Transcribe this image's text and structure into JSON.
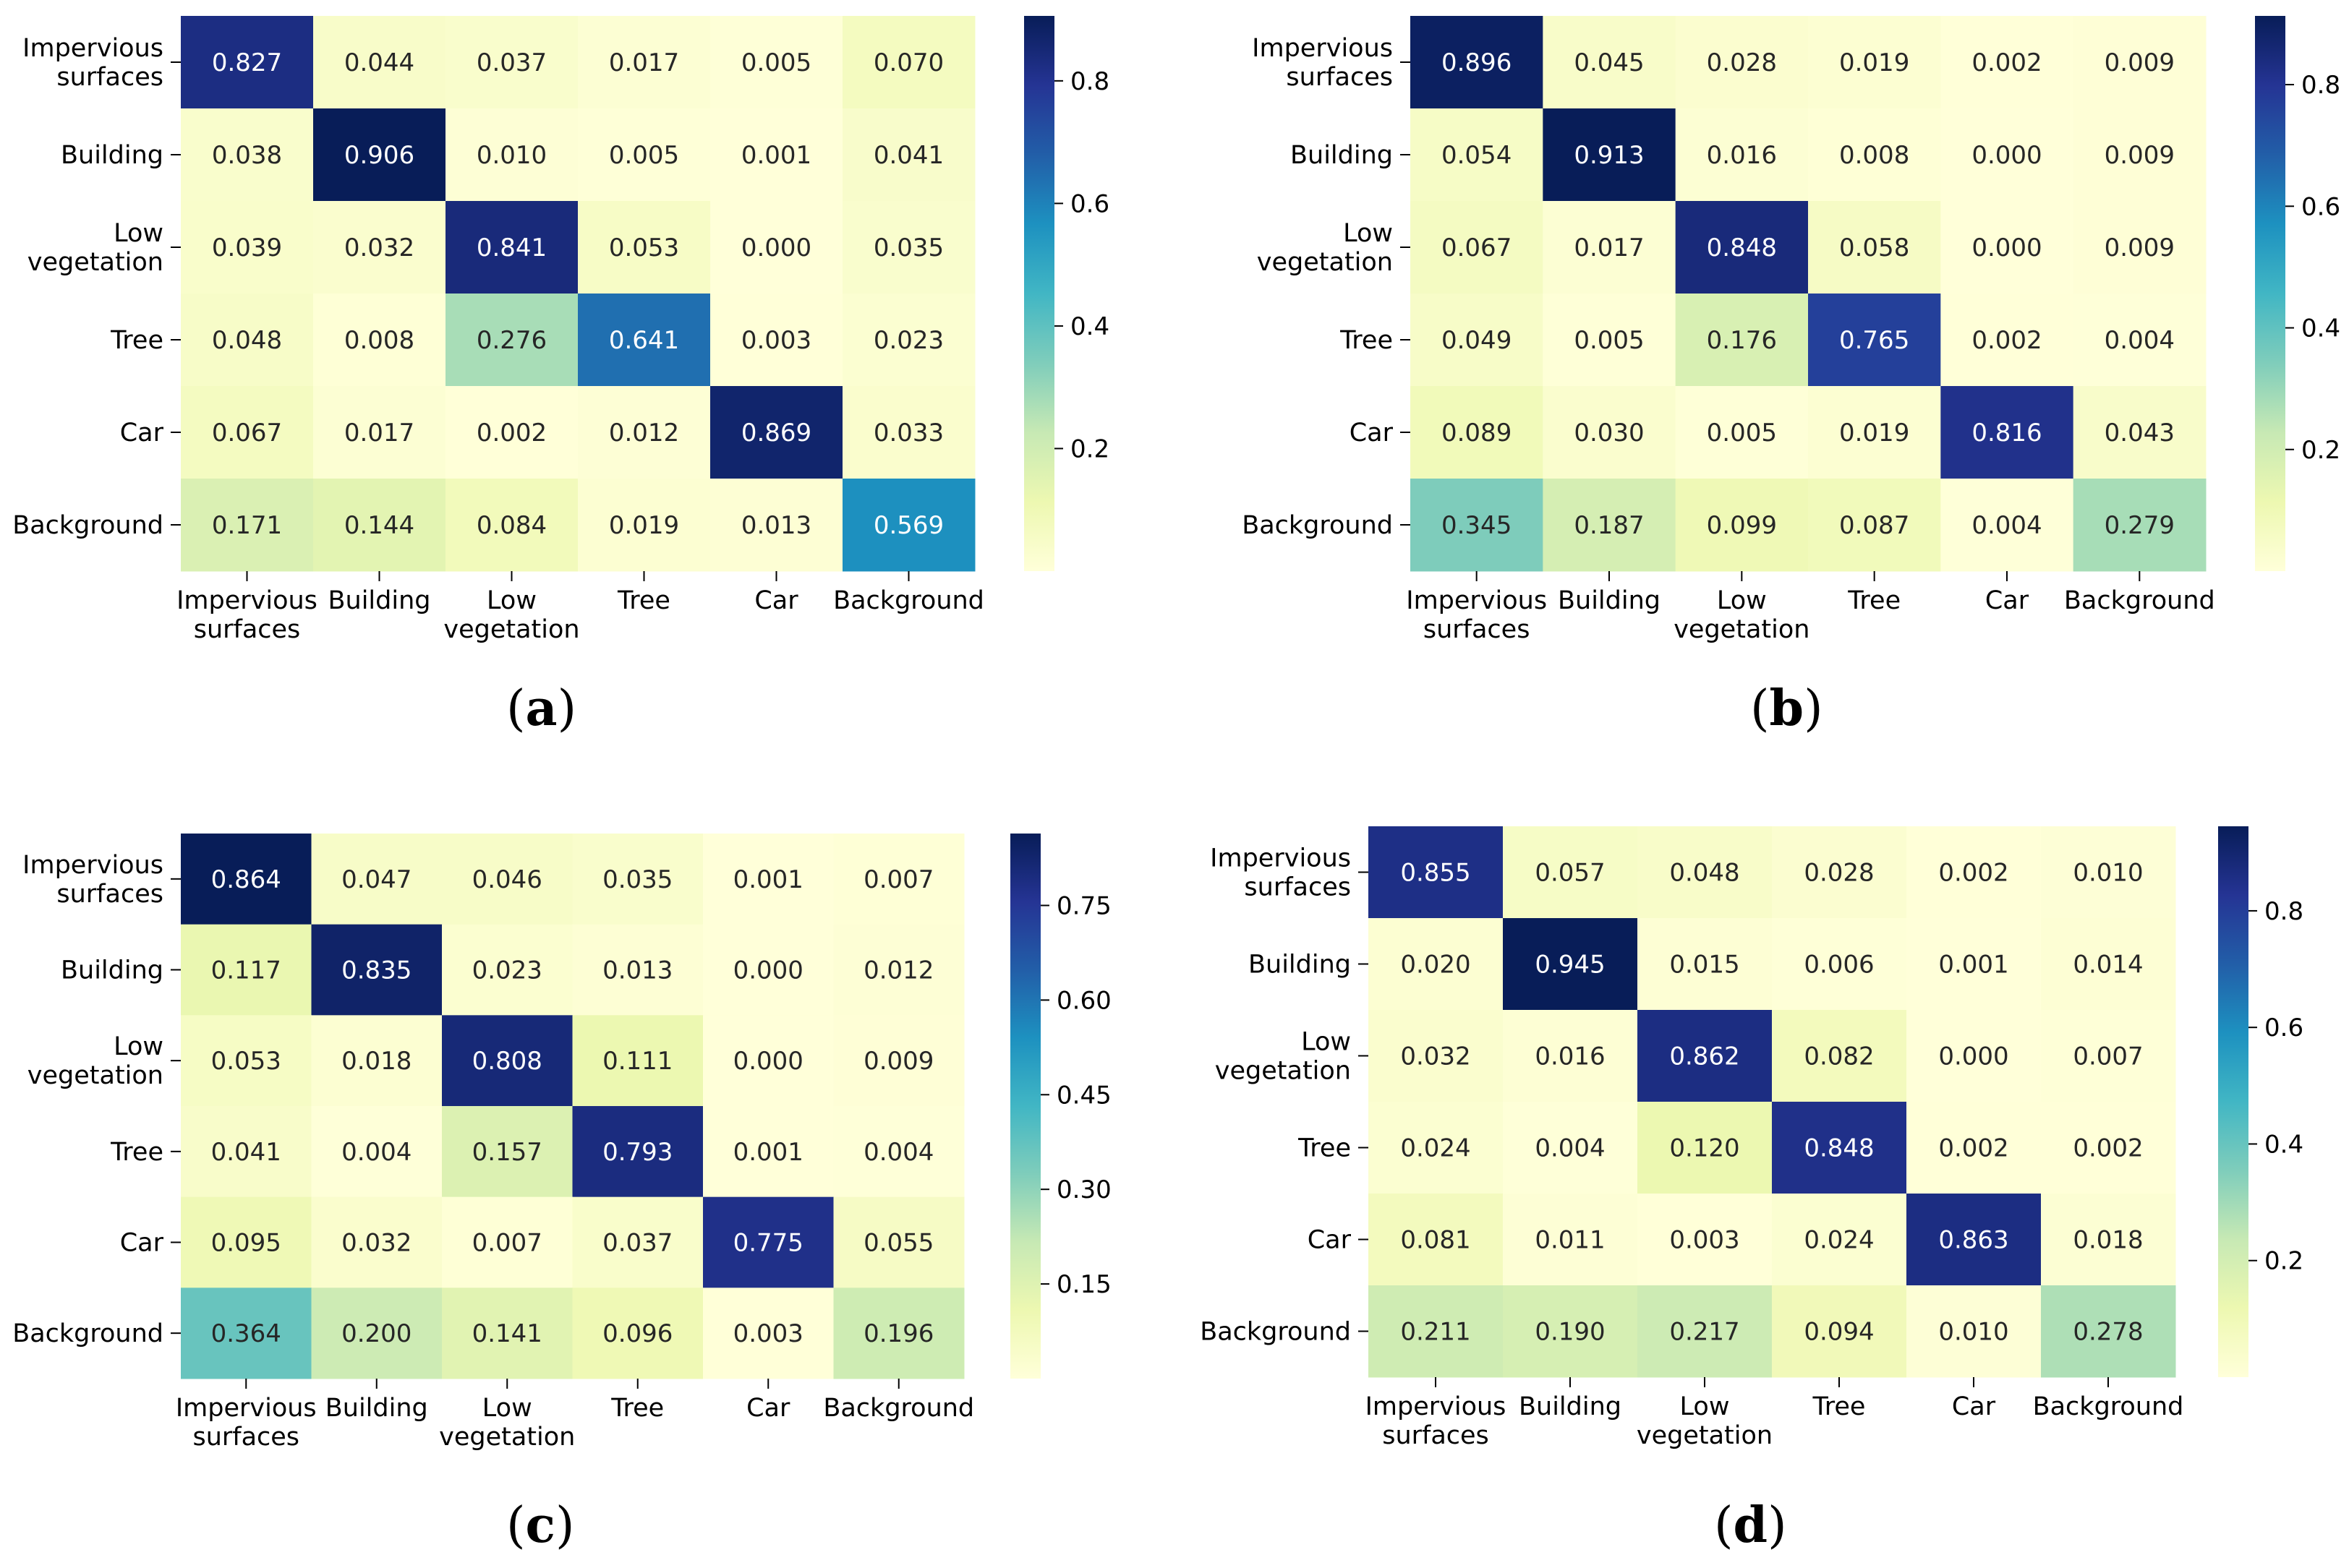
{
  "colormap": [
    "#ffffd9",
    "#edf8b1",
    "#c7e9b4",
    "#7fcdbb",
    "#41b6c4",
    "#1d91c0",
    "#225ea8",
    "#253494",
    "#081d58"
  ],
  "chart_data": [
    {
      "type": "heatmap",
      "panel": "a",
      "rows": [
        "Impervious\nsurfaces",
        "Building",
        "Low\nvegetation",
        "Tree",
        "Car",
        "Background"
      ],
      "cols": [
        "Impervious\nsurfaces",
        "Building",
        "Low\nvegetation",
        "Tree",
        "Car",
        "Background"
      ],
      "values": [
        [
          0.827,
          0.044,
          0.037,
          0.017,
          0.005,
          0.07
        ],
        [
          0.038,
          0.906,
          0.01,
          0.005,
          0.001,
          0.041
        ],
        [
          0.039,
          0.032,
          0.841,
          0.053,
          0.0,
          0.035
        ],
        [
          0.048,
          0.008,
          0.276,
          0.641,
          0.003,
          0.023
        ],
        [
          0.067,
          0.017,
          0.002,
          0.012,
          0.869,
          0.033
        ],
        [
          0.171,
          0.144,
          0.084,
          0.019,
          0.013,
          0.569
        ]
      ],
      "vmin": 0.0,
      "vmax": 0.906,
      "colorbar_ticks": [
        "0.2",
        "0.4",
        "0.6",
        "0.8"
      ]
    },
    {
      "type": "heatmap",
      "panel": "b",
      "rows": [
        "Impervious\nsurfaces",
        "Building",
        "Low\nvegetation",
        "Tree",
        "Car",
        "Background"
      ],
      "cols": [
        "Impervious\nsurfaces",
        "Building",
        "Low\nvegetation",
        "Tree",
        "Car",
        "Background"
      ],
      "values": [
        [
          0.896,
          0.045,
          0.028,
          0.019,
          0.002,
          0.009
        ],
        [
          0.054,
          0.913,
          0.016,
          0.008,
          0.0,
          0.009
        ],
        [
          0.067,
          0.017,
          0.848,
          0.058,
          0.0,
          0.009
        ],
        [
          0.049,
          0.005,
          0.176,
          0.765,
          0.002,
          0.004
        ],
        [
          0.089,
          0.03,
          0.005,
          0.019,
          0.816,
          0.043
        ],
        [
          0.345,
          0.187,
          0.099,
          0.087,
          0.004,
          0.279
        ]
      ],
      "vmin": 0.0,
      "vmax": 0.913,
      "colorbar_ticks": [
        "0.2",
        "0.4",
        "0.6",
        "0.8"
      ]
    },
    {
      "type": "heatmap",
      "panel": "c",
      "rows": [
        "Impervious\nsurfaces",
        "Building",
        "Low\nvegetation",
        "Tree",
        "Car",
        "Background"
      ],
      "cols": [
        "Impervious\nsurfaces",
        "Building",
        "Low\nvegetation",
        "Tree",
        "Car",
        "Background"
      ],
      "values": [
        [
          0.864,
          0.047,
          0.046,
          0.035,
          0.001,
          0.007
        ],
        [
          0.117,
          0.835,
          0.023,
          0.013,
          0.0,
          0.012
        ],
        [
          0.053,
          0.018,
          0.808,
          0.111,
          0.0,
          0.009
        ],
        [
          0.041,
          0.004,
          0.157,
          0.793,
          0.001,
          0.004
        ],
        [
          0.095,
          0.032,
          0.007,
          0.037,
          0.775,
          0.055
        ],
        [
          0.364,
          0.2,
          0.141,
          0.096,
          0.003,
          0.196
        ]
      ],
      "vmin": 0.0,
      "vmax": 0.864,
      "colorbar_ticks": [
        "0.15",
        "0.30",
        "0.45",
        "0.60",
        "0.75"
      ]
    },
    {
      "type": "heatmap",
      "panel": "d",
      "rows": [
        "Impervious\nsurfaces",
        "Building",
        "Low\nvegetation",
        "Tree",
        "Car",
        "Background"
      ],
      "cols": [
        "Impervious\nsurfaces",
        "Building",
        "Low\nvegetation",
        "Tree",
        "Car",
        "Background"
      ],
      "values": [
        [
          0.855,
          0.057,
          0.048,
          0.028,
          0.002,
          0.01
        ],
        [
          0.02,
          0.945,
          0.015,
          0.006,
          0.001,
          0.014
        ],
        [
          0.032,
          0.016,
          0.862,
          0.082,
          0.0,
          0.007
        ],
        [
          0.024,
          0.004,
          0.12,
          0.848,
          0.002,
          0.002
        ],
        [
          0.081,
          0.011,
          0.003,
          0.024,
          0.863,
          0.018
        ],
        [
          0.211,
          0.19,
          0.217,
          0.094,
          0.01,
          0.278
        ]
      ],
      "vmin": 0.0,
      "vmax": 0.945,
      "colorbar_ticks": [
        "0.2",
        "0.4",
        "0.6",
        "0.8"
      ]
    }
  ],
  "panel_labels": [
    "a",
    "b",
    "c",
    "d"
  ]
}
